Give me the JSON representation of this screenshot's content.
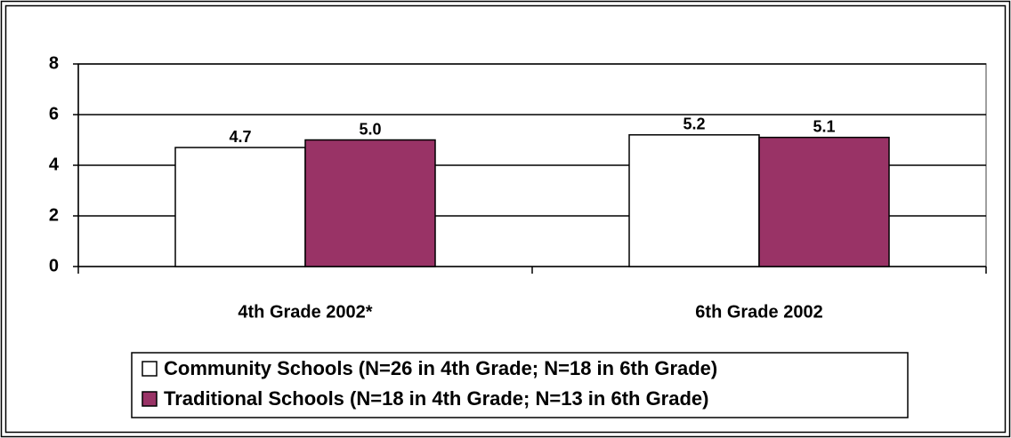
{
  "chart_data": {
    "type": "bar",
    "categories": [
      "4th Grade 2002*",
      "6th Grade 2002"
    ],
    "series": [
      {
        "name": "Community Schools (N=26 in 4th Grade; N=18 in 6th Grade)",
        "color": "#ffffff",
        "values": [
          4.7,
          5.2
        ],
        "value_labels": [
          "4.7",
          "5.2"
        ]
      },
      {
        "name": "Traditional Schools (N=18 in 4th Grade; N=13 in 6th Grade)",
        "color": "#993366",
        "values": [
          5.0,
          5.1
        ],
        "value_labels": [
          "5.0",
          "5.1"
        ]
      }
    ],
    "ylim": [
      0,
      8
    ],
    "yticks": [
      0,
      2,
      4,
      6,
      8
    ],
    "grid": true,
    "legend": "bottom"
  }
}
